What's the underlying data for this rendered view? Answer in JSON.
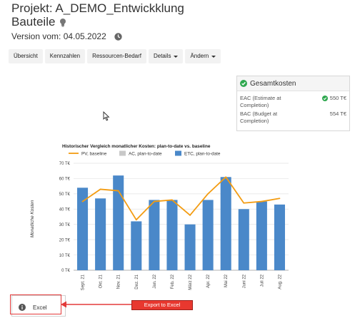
{
  "header": {
    "title": "Projekt: A_DEMO_Entwickklung",
    "subtitle": "Bauteile",
    "version": "Version vom: 04.05.2022"
  },
  "nav": {
    "items": [
      {
        "label": "Übersicht",
        "dropdown": false
      },
      {
        "label": "Kennzahlen",
        "dropdown": false
      },
      {
        "label": "Ressourcen-Bedarf",
        "dropdown": false
      },
      {
        "label": "Details",
        "dropdown": true
      },
      {
        "label": "Ändern",
        "dropdown": true
      }
    ]
  },
  "cost_box": {
    "title": "Gesamtkosten",
    "eac_label": "EAC (Estimate at Completion)",
    "eac_value": "550 T€",
    "bac_label": "BAC (Budget at Completion)",
    "bac_value": "554 T€",
    "ok_color": "#2fa84f"
  },
  "chart_data": {
    "type": "bar",
    "title": "Historischer Vergleich monatlicher Kosten: plan-to-date vs. baseline",
    "ylabel": "Monatliche Kosten",
    "ylim": [
      0,
      70
    ],
    "yticks": [
      "0 T€",
      "10 T€",
      "20 T€",
      "30 T€",
      "40 T€",
      "50 T€",
      "60 T€",
      "70 T€"
    ],
    "legend": [
      "PV, baseline",
      "AC, plan-to-date",
      "ETC, plan-to-date"
    ],
    "legend_position": "top-left",
    "grid": true,
    "categories": [
      "Sept. 21",
      "Okt. 21",
      "Nov. 21",
      "Dez. 21",
      "Jan. 22",
      "Feb. 22",
      "März 22",
      "Apr. 22",
      "Mai 22",
      "Juni 22",
      "Juli 22",
      "Aug. 22"
    ],
    "series": [
      {
        "name": "PV, baseline",
        "type": "line",
        "color": "#f39c12",
        "values": [
          45,
          53,
          52,
          33,
          45,
          46,
          36,
          50,
          61,
          44,
          45,
          47
        ]
      },
      {
        "name": "AC, plan-to-date",
        "type": "bar",
        "color": "#c8c8c8",
        "values": [
          0,
          0,
          0,
          0,
          0,
          0,
          0,
          0,
          0,
          0,
          0,
          0
        ]
      },
      {
        "name": "ETC, plan-to-date",
        "type": "bar",
        "color": "#4a88c9",
        "values": [
          54,
          47,
          62,
          32,
          46,
          46,
          30,
          46,
          61,
          40,
          45,
          43
        ]
      }
    ]
  },
  "footer": {
    "excel_label": "Excel",
    "annotation": "Export to Excel"
  }
}
